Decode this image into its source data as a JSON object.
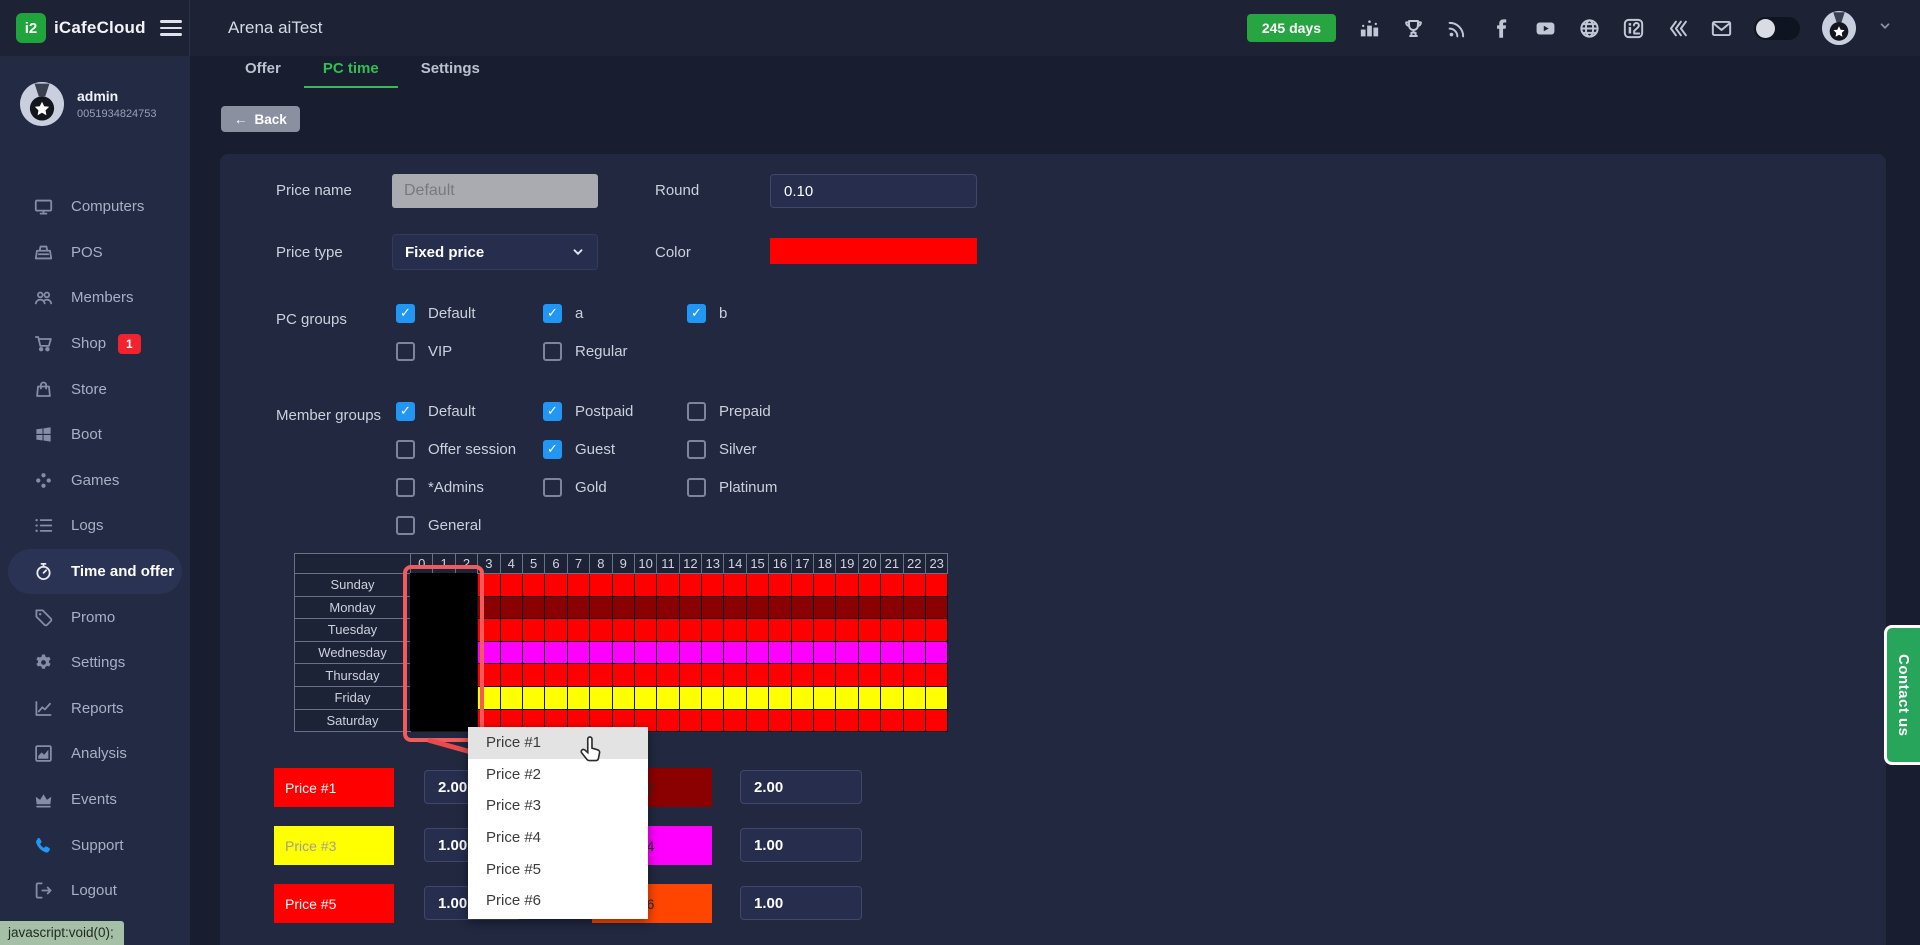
{
  "header": {
    "logo_glyph": "i2",
    "logo_text": "iCafeCloud",
    "title": "Arena aiTest",
    "license_badge": "245 days",
    "icons": [
      "ranking-icon",
      "trophy-icon",
      "rss-icon",
      "facebook-icon",
      "youtube-icon",
      "globe-icon",
      "icafe-app-icon",
      "layers-icon",
      "mail-icon"
    ],
    "user": {
      "name": "admin",
      "id": "0051934824753"
    }
  },
  "sidebar": {
    "items": [
      {
        "label": "Computers",
        "icon": "computers"
      },
      {
        "label": "POS",
        "icon": "pos"
      },
      {
        "label": "Members",
        "icon": "members"
      },
      {
        "label": "Shop",
        "icon": "shop",
        "badge": "1"
      },
      {
        "label": "Store",
        "icon": "store"
      },
      {
        "label": "Boot",
        "icon": "boot"
      },
      {
        "label": "Games",
        "icon": "games"
      },
      {
        "label": "Logs",
        "icon": "logs"
      },
      {
        "label": "Time and offer",
        "icon": "time",
        "active": true
      },
      {
        "label": "Promo",
        "icon": "promo"
      },
      {
        "label": "Settings",
        "icon": "settings"
      },
      {
        "label": "Reports",
        "icon": "reports"
      },
      {
        "label": "Analysis",
        "icon": "analysis"
      },
      {
        "label": "Events",
        "icon": "events"
      },
      {
        "label": "Support",
        "icon": "support",
        "icon_color": "#2196f3"
      },
      {
        "label": "Logout",
        "icon": "logout"
      }
    ]
  },
  "tabs": [
    {
      "label": "Offer",
      "active": false
    },
    {
      "label": "PC time",
      "active": true
    },
    {
      "label": "Settings",
      "active": false
    }
  ],
  "back_button": {
    "arrow": "←",
    "label": "Back"
  },
  "form": {
    "price_name": {
      "label": "Price name",
      "placeholder": "Default"
    },
    "round": {
      "label": "Round",
      "value": "0.10"
    },
    "price_type": {
      "label": "Price type",
      "value": "Fixed price"
    },
    "color": {
      "label": "Color",
      "value": "#ff0000"
    },
    "pc_groups": {
      "label": "PC groups",
      "options": [
        {
          "label": "Default",
          "checked": true
        },
        {
          "label": "a",
          "checked": true
        },
        {
          "label": "b",
          "checked": true
        },
        {
          "label": "VIP",
          "checked": false
        },
        {
          "label": "Regular",
          "checked": false
        }
      ]
    },
    "member_groups": {
      "label": "Member groups",
      "options": [
        {
          "label": "Default",
          "checked": true
        },
        {
          "label": "Postpaid",
          "checked": true
        },
        {
          "label": "Prepaid",
          "checked": false
        },
        {
          "label": "Offer session",
          "checked": false
        },
        {
          "label": "Guest",
          "checked": true
        },
        {
          "label": "Silver",
          "checked": false
        },
        {
          "label": "*Admins",
          "checked": false
        },
        {
          "label": "Gold",
          "checked": false
        },
        {
          "label": "Platinum",
          "checked": false
        },
        {
          "label": "General",
          "checked": false
        }
      ]
    }
  },
  "schedule": {
    "hours": [
      "0",
      "1",
      "2",
      "3",
      "4",
      "5",
      "6",
      "7",
      "8",
      "9",
      "10",
      "11",
      "12",
      "13",
      "14",
      "15",
      "16",
      "17",
      "18",
      "19",
      "20",
      "21",
      "22",
      "23"
    ],
    "days": [
      "Sunday",
      "Monday",
      "Tuesday",
      "Wednesday",
      "Thursday",
      "Friday",
      "Saturday"
    ],
    "row_colors": {
      "Sunday": "#ff0000",
      "Monday": "#8b0000",
      "Tuesday": "#ff0000",
      "Wednesday": "#ff00ff",
      "Thursday": "#ff0000",
      "Friday": "#ffff00",
      "Saturday": "#ff0000"
    },
    "selection": {
      "hours": [
        0,
        1,
        2
      ],
      "days": "all",
      "fill": "#000000",
      "border": "#f15b5b"
    }
  },
  "price_menu": {
    "items": [
      "Price #1",
      "Price #2",
      "Price #3",
      "Price #4",
      "Price #5",
      "Price #6"
    ],
    "highlighted": "Price #1"
  },
  "price_rows": [
    {
      "left_label": "Price #1",
      "left_color": "#ff0000",
      "left_text": "#ffffff",
      "left_value": "2.00",
      "right_label": "Price #2",
      "right_color": "#8b0000",
      "right_text": "#2b2b2b",
      "right_value": "2.00"
    },
    {
      "left_label": "Price #3",
      "left_color": "#ffff00",
      "left_text": "#9e9e9e",
      "left_value": "1.00",
      "right_label": "Price #4",
      "right_color": "#ff00ff",
      "right_text": "#2b2b2b",
      "right_value": "1.00"
    },
    {
      "left_label": "Price #5",
      "left_color": "#ff0000",
      "left_text": "#ffffff",
      "left_value": "1.00",
      "right_label": "Price #6",
      "right_color": "#ff4500",
      "right_text": "#2b2b2b",
      "right_value": "1.00"
    }
  ],
  "contact_us": "Contact us",
  "status_bar": "javascript:void(0);",
  "colors": {
    "accent_green": "#2fbf52",
    "checkbox_blue": "#2196f3",
    "selection_red": "#f15b5b"
  }
}
